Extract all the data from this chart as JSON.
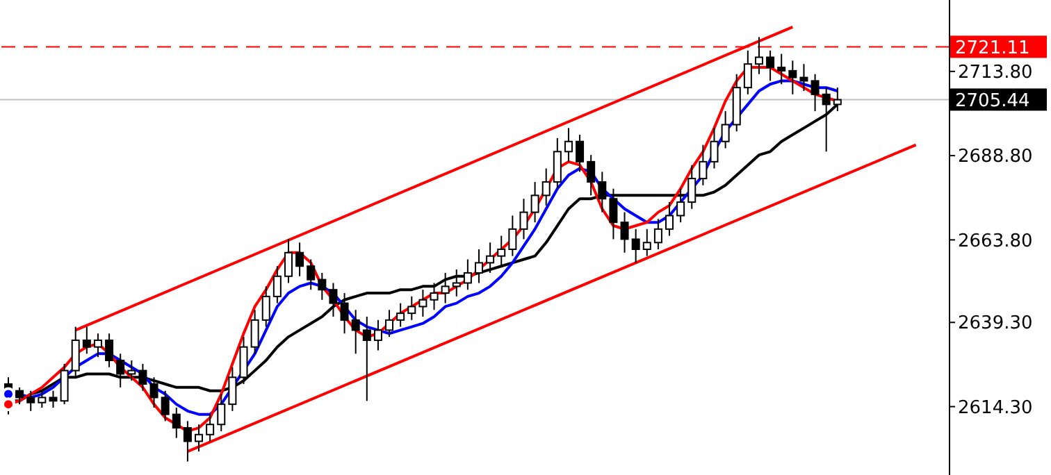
{
  "chart_data": {
    "type": "candlestick",
    "categories": [
      null,
      null,
      null,
      null,
      null,
      null,
      null,
      null,
      null,
      null,
      null,
      null,
      null,
      null,
      null,
      null,
      null,
      null,
      null,
      null,
      null,
      null,
      null,
      null,
      null,
      null,
      null,
      null,
      null,
      null,
      null,
      null,
      null,
      null,
      null,
      null,
      null,
      null,
      null,
      null,
      null,
      null,
      null,
      null,
      null,
      null,
      null,
      null,
      null,
      null,
      null,
      null,
      null,
      null,
      null,
      null,
      null,
      null,
      null,
      null,
      null,
      null,
      null,
      null,
      null,
      null,
      null,
      null,
      null,
      null,
      null,
      null,
      null,
      null,
      null,
      null,
      null,
      null,
      null,
      null,
      null,
      null,
      null,
      null,
      null
    ],
    "ohlc": [
      [
        2621,
        2623,
        2612,
        2619
      ],
      [
        2619,
        2620,
        2615,
        2617
      ],
      [
        2617,
        2619,
        2613,
        2615.5
      ],
      [
        2615.5,
        2619,
        2614,
        2617
      ],
      [
        2617,
        2619,
        2614,
        2616
      ],
      [
        2616,
        2627,
        2615,
        2625
      ],
      [
        2625,
        2638,
        2623,
        2634
      ],
      [
        2634,
        2638,
        2630,
        2632
      ],
      [
        2632,
        2636,
        2629,
        2634
      ],
      [
        2634,
        2636,
        2626,
        2628
      ],
      [
        2628,
        2630,
        2620,
        2624
      ],
      [
        2624,
        2628,
        2622,
        2625
      ],
      [
        2625,
        2627,
        2619,
        2621
      ],
      [
        2621,
        2623,
        2614,
        2617
      ],
      [
        2617,
        2619,
        2610,
        2612
      ],
      [
        2612,
        2614,
        2605,
        2608
      ],
      [
        2608,
        2610,
        2598,
        2604
      ],
      [
        2604,
        2609,
        2601,
        2606
      ],
      [
        2606,
        2612,
        2604,
        2609
      ],
      [
        2609,
        2618,
        2607,
        2615
      ],
      [
        2615,
        2626,
        2613,
        2623
      ],
      [
        2623,
        2635,
        2621,
        2632
      ],
      [
        2632,
        2643,
        2630,
        2640
      ],
      [
        2640,
        2650,
        2638,
        2647
      ],
      [
        2647,
        2656,
        2645,
        2653
      ],
      [
        2653,
        2664,
        2651,
        2660
      ],
      [
        2660,
        2663,
        2653,
        2656
      ],
      [
        2656,
        2658,
        2649,
        2652
      ],
      [
        2652,
        2654,
        2646,
        2649
      ],
      [
        2649,
        2651,
        2641,
        2645
      ],
      [
        2645,
        2648,
        2636,
        2640
      ],
      [
        2640,
        2643,
        2630,
        2637
      ],
      [
        2637,
        2641,
        2616,
        2634
      ],
      [
        2634,
        2640,
        2631,
        2637
      ],
      [
        2637,
        2643,
        2635,
        2640
      ],
      [
        2640,
        2645,
        2638,
        2642
      ],
      [
        2642,
        2647,
        2640,
        2644
      ],
      [
        2644,
        2649,
        2641,
        2646
      ],
      [
        2646,
        2651,
        2643,
        2648
      ],
      [
        2648,
        2654,
        2645,
        2650
      ],
      [
        2650,
        2655,
        2647,
        2651
      ],
      [
        2651,
        2658,
        2649,
        2654
      ],
      [
        2654,
        2661,
        2651,
        2657
      ],
      [
        2657,
        2663,
        2654,
        2659
      ],
      [
        2659,
        2665,
        2656,
        2661
      ],
      [
        2661,
        2671,
        2659,
        2667
      ],
      [
        2667,
        2676,
        2664,
        2672
      ],
      [
        2672,
        2681,
        2669,
        2677
      ],
      [
        2677,
        2685,
        2674,
        2681
      ],
      [
        2681,
        2694,
        2679,
        2690
      ],
      [
        2690,
        2697,
        2687,
        2693
      ],
      [
        2693,
        2695,
        2684,
        2687
      ],
      [
        2687,
        2689,
        2677,
        2681
      ],
      [
        2681,
        2684,
        2672,
        2676
      ],
      [
        2676,
        2679,
        2664,
        2669
      ],
      [
        2669,
        2672,
        2660,
        2664
      ],
      [
        2664,
        2667,
        2657,
        2661
      ],
      [
        2661,
        2667,
        2659,
        2663
      ],
      [
        2663,
        2670,
        2661,
        2667
      ],
      [
        2667,
        2675,
        2665,
        2671
      ],
      [
        2671,
        2679,
        2669,
        2675
      ],
      [
        2675,
        2686,
        2673,
        2682
      ],
      [
        2682,
        2692,
        2680,
        2687
      ],
      [
        2687,
        2697,
        2685,
        2693
      ],
      [
        2693,
        2702,
        2691,
        2698
      ],
      [
        2698,
        2713,
        2696,
        2709
      ],
      [
        2709,
        2720,
        2707,
        2716
      ],
      [
        2716,
        2724,
        2713,
        2718
      ],
      [
        2718,
        2720,
        2711,
        2715
      ],
      [
        2715,
        2719,
        2710,
        2714
      ],
      [
        2714,
        2717,
        2707,
        2712
      ],
      [
        2712,
        2716,
        2708,
        2711
      ],
      [
        2711,
        2713,
        2702,
        2707
      ],
      [
        2707,
        2709,
        2690,
        2704
      ],
      [
        2704,
        2709,
        2702,
        2705.4
      ],
      null,
      null,
      null,
      null,
      null,
      null,
      null,
      null,
      null,
      null
    ],
    "series": [
      {
        "type": "line",
        "color": "#000000",
        "values": [
          2616,
          2616,
          2618,
          2619,
          2621,
          2623,
          2623,
          2624,
          2624,
          2624,
          2623,
          2623,
          2623,
          2622,
          2621,
          2620,
          2620,
          2620,
          2619,
          2619,
          2620,
          2622,
          2625,
          2628,
          2632,
          2635,
          2637,
          2639,
          2641,
          2644,
          2646,
          2647,
          2648,
          2648,
          2648,
          2649,
          2649,
          2650,
          2650,
          2652,
          2653,
          2653,
          2654,
          2655,
          2656,
          2657,
          2658,
          2659,
          2663,
          2668,
          2673,
          2676,
          2676,
          2677,
          2677,
          2677,
          2677,
          2677,
          2677,
          2677,
          2677,
          2677,
          2677,
          2678,
          2680,
          2683,
          2686,
          2689,
          2690,
          2693,
          2695,
          2697,
          2699,
          2701,
          2704,
          null,
          null,
          null,
          null,
          null,
          null,
          null,
          null,
          null,
          null
        ]
      },
      {
        "type": "line",
        "color": "#0000ff",
        "values": [
          2618,
          2618,
          2617,
          2618,
          2620,
          2623,
          2626,
          2628,
          2630,
          2630,
          2628,
          2626,
          2624,
          2620,
          2618,
          2615,
          2613,
          2612,
          2612,
          2615,
          2620,
          2625,
          2630,
          2637,
          2644,
          2648,
          2650,
          2651,
          2650,
          2648,
          2644,
          2640,
          2638,
          2637,
          2636,
          2637,
          2638,
          2639,
          2641,
          2644,
          2645,
          2647,
          2648,
          2650,
          2653,
          2657,
          2662,
          2667,
          2673,
          2679,
          2683,
          2685,
          2684,
          2679,
          2676,
          2673,
          2671,
          2669,
          2669,
          2671,
          2675,
          2679,
          2683,
          2690,
          2696,
          2700,
          2704,
          2708,
          2710,
          2711,
          2711,
          2710,
          2709,
          2709,
          2708,
          null,
          null,
          null,
          null,
          null,
          null,
          null,
          null,
          null,
          null
        ]
      },
      {
        "type": "line",
        "color": "#ff0000",
        "values": [
          2615,
          2616,
          2618,
          2620,
          2623,
          2626,
          2630,
          2632,
          2633,
          2630,
          2626,
          2623,
          2620,
          2615,
          2611,
          2609,
          2607,
          2608,
          2611,
          2618,
          2627,
          2636,
          2644,
          2649,
          2655,
          2660,
          2660,
          2657,
          2650,
          2646,
          2641,
          2637,
          2635,
          2636,
          2639,
          2642,
          2644,
          2646,
          2648,
          2648,
          2650,
          2652,
          2655,
          2658,
          2661,
          2664,
          2668,
          2673,
          2679,
          2685,
          2687,
          2686,
          2681,
          2673,
          2668,
          2667,
          2668,
          2669,
          2672,
          2674,
          2679,
          2685,
          2690,
          2697,
          2705,
          2711,
          2715,
          2715,
          2715,
          2713,
          2711,
          2709,
          2707,
          2706,
          2705,
          null,
          null,
          null,
          null,
          null,
          null,
          null,
          null,
          null,
          null
        ]
      },
      {
        "type": "line",
        "color": "#ff0000",
        "values": [
          null,
          null,
          null,
          null,
          null,
          null,
          2637,
          null,
          null,
          null,
          null,
          null,
          null,
          null,
          null,
          null,
          null,
          null,
          null,
          null,
          null,
          null,
          null,
          null,
          null,
          null,
          null,
          null,
          null,
          null,
          null,
          null,
          null,
          null,
          null,
          null,
          null,
          null,
          null,
          null,
          null,
          null,
          null,
          null,
          null,
          null,
          null,
          null,
          null,
          null,
          null,
          null,
          null,
          null,
          null,
          null,
          null,
          null,
          null,
          null,
          null,
          null,
          null,
          null,
          null,
          null,
          null,
          null,
          null,
          null,
          2727,
          null,
          null,
          null,
          null,
          null,
          null,
          null,
          null,
          null,
          null,
          null,
          null,
          null,
          null
        ]
      },
      {
        "type": "line",
        "color": "#ff0000",
        "values": [
          null,
          null,
          null,
          null,
          null,
          null,
          null,
          null,
          null,
          null,
          null,
          null,
          null,
          null,
          null,
          null,
          2601,
          null,
          null,
          null,
          null,
          null,
          null,
          null,
          null,
          null,
          null,
          null,
          null,
          null,
          null,
          null,
          null,
          null,
          null,
          null,
          null,
          null,
          null,
          null,
          null,
          null,
          null,
          null,
          null,
          null,
          null,
          null,
          null,
          null,
          null,
          null,
          null,
          null,
          null,
          null,
          null,
          null,
          null,
          null,
          null,
          null,
          null,
          null,
          null,
          null,
          null,
          null,
          null,
          null,
          null,
          null,
          null,
          null,
          null,
          null,
          null,
          null,
          null,
          null,
          null,
          2692,
          null,
          null,
          null
        ]
      }
    ],
    "ylim": [
      2594,
      2735
    ],
    "yticks": [
      {
        "value": 2614.3,
        "label": "2614.30"
      },
      {
        "value": 2639.3,
        "label": "2639.30"
      },
      {
        "value": 2663.8,
        "label": "2663.80"
      },
      {
        "value": 2688.8,
        "label": "2688.80"
      },
      {
        "value": 2713.8,
        "label": "2713.80"
      }
    ],
    "ref_lines": [
      {
        "axis": "y",
        "value": 2721.11,
        "label": "2721.11",
        "color": "#ff0000",
        "line_style": "dashed"
      },
      {
        "axis": "y",
        "value": 2705.44,
        "label": "2705.44",
        "color": "#c0c0c0",
        "line_style": "solid"
      }
    ],
    "tick_labels": "y",
    "grid": false,
    "legend": false,
    "marker": "none"
  }
}
